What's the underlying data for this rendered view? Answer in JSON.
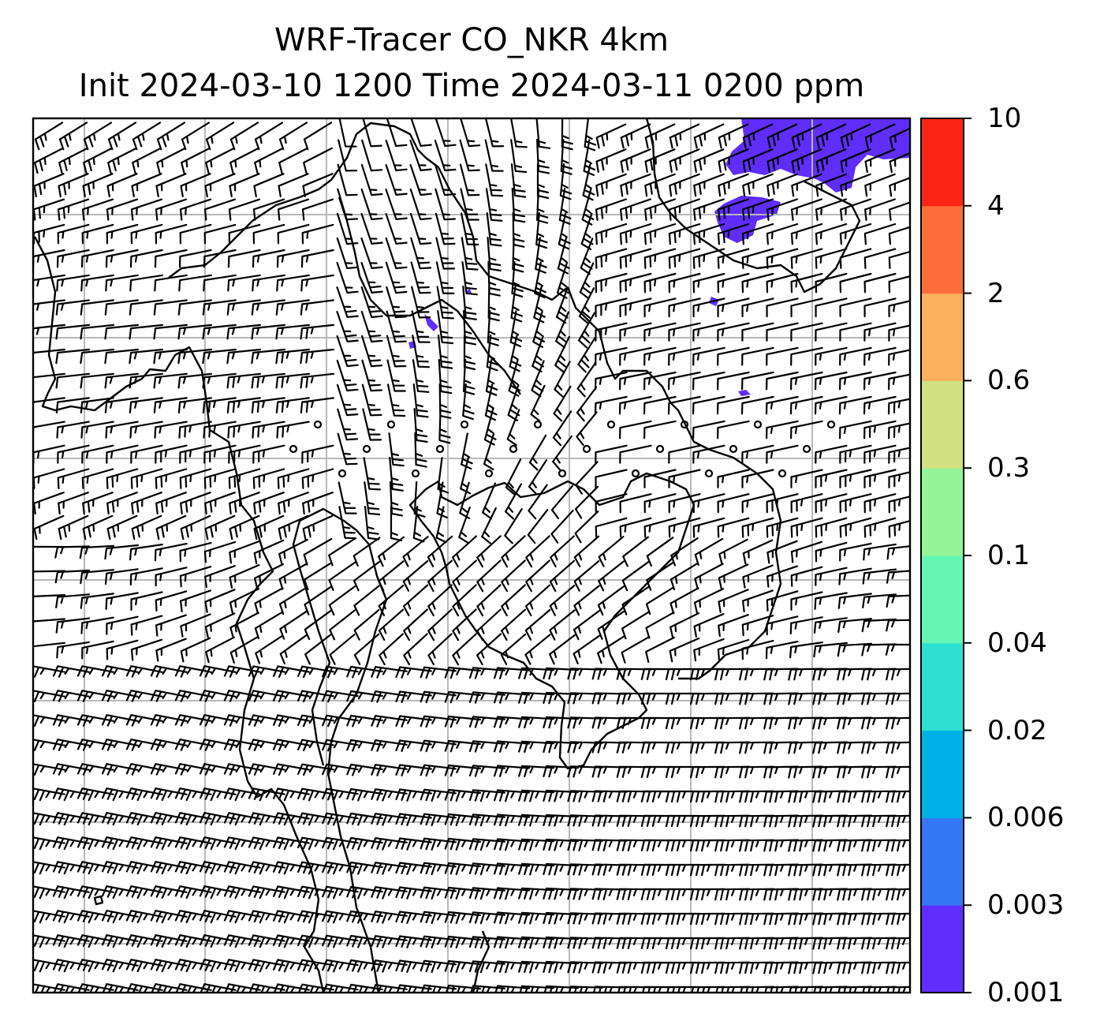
{
  "title_line1": "WRF-Tracer CO_NKR 4km",
  "title_line2": "Init 2024-03-10 1200 Time 2024-03-11 0200 ppm",
  "colorbar": {
    "levels": [
      "0.001",
      "0.003",
      "0.006",
      "0.02",
      "0.04",
      "0.1",
      "0.3",
      "0.6",
      "2",
      "4",
      "10"
    ],
    "colors": [
      "#5f2dfc",
      "#3478f5",
      "#00b1e8",
      "#2ee0d1",
      "#64f7b4",
      "#93f597",
      "#d2e182",
      "#fbb05e",
      "#fd6d3a",
      "#fb2516"
    ]
  },
  "tracer_fill_color": "#5f2dfc",
  "gridlines": true,
  "wind_field": "barbs"
}
